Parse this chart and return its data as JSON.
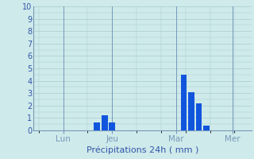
{
  "title": "",
  "xlabel": "Précipitations 24h ( mm )",
  "ylabel": "",
  "ylim": [
    0,
    10
  ],
  "yticks": [
    0,
    1,
    2,
    3,
    4,
    5,
    6,
    7,
    8,
    9,
    10
  ],
  "background_color": "#ceeaea",
  "bar_color": "#1155dd",
  "grid_color": "#aacccc",
  "axis_color": "#7799bb",
  "tick_label_color": "#3355aa",
  "xlabel_color": "#3355aa",
  "bars": [
    {
      "x": 17,
      "height": 0.65
    },
    {
      "x": 19,
      "height": 1.2
    },
    {
      "x": 21,
      "height": 0.65
    },
    {
      "x": 40,
      "height": 4.5
    },
    {
      "x": 42,
      "height": 3.1
    },
    {
      "x": 44,
      "height": 2.2
    },
    {
      "x": 46,
      "height": 0.4
    }
  ],
  "day_ticks": [
    {
      "x": 8,
      "label": "Lun"
    },
    {
      "x": 21,
      "label": "Jeu"
    },
    {
      "x": 38,
      "label": "Mar"
    },
    {
      "x": 53,
      "label": "Mer"
    }
  ],
  "vlines": [
    8,
    21,
    38,
    53
  ],
  "xlim": [
    0,
    58
  ],
  "bar_width": 1.6
}
